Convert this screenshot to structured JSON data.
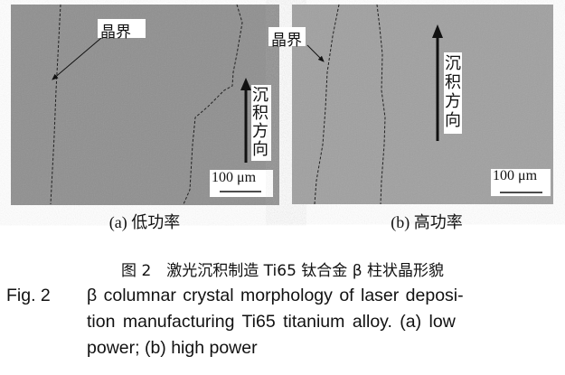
{
  "figure": {
    "panels": [
      {
        "boundary_label": "晶界",
        "direction_label": "沉积方向",
        "scale_label": "100 μm",
        "caption": "(a) 低功率"
      },
      {
        "boundary_label": "晶界",
        "direction_label": "沉积方向",
        "scale_label": "100 μm",
        "caption": "(b) 高功率"
      }
    ],
    "caption_cn": "图 2　激光沉积制造 Ti65 钛合金 β 柱状晶形貌",
    "caption_en_label": "Fig. 2",
    "caption_en_lines": [
      "β columnar crystal morphology of laser deposi-",
      "tion manufacturing Ti65 titanium alloy. (a) low",
      "power; (b) high power"
    ]
  }
}
